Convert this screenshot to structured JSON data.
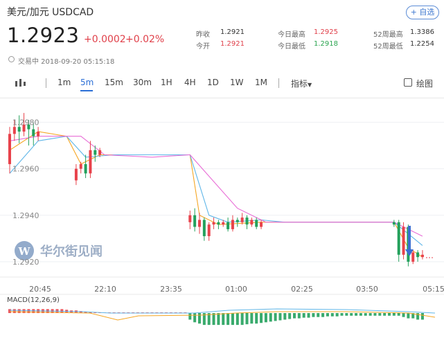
{
  "header": {
    "title": "美元/加元  USDCAD",
    "follow_label": "+ 自选"
  },
  "quote": {
    "price": "1.2923",
    "change": "+0.0002",
    "change_pct": "+0.02%",
    "fields": [
      {
        "label": "昨收",
        "value": "1.2921",
        "color": "normal"
      },
      {
        "label": "今日最高",
        "value": "1.2925",
        "color": "red"
      },
      {
        "label": "52周最高",
        "value": "1.3386",
        "color": "normal"
      },
      {
        "label": "今开",
        "value": "1.2921",
        "color": "red"
      },
      {
        "label": "今日最低",
        "value": "1.2918",
        "color": "green"
      },
      {
        "label": "52周最低",
        "value": "1.2254",
        "color": "normal"
      }
    ]
  },
  "status": {
    "text": "交易中 2018-09-20 05:15:18"
  },
  "toolbar": {
    "periods": [
      "1m",
      "5m",
      "15m",
      "30m",
      "1H",
      "4H",
      "1D",
      "1W",
      "1M"
    ],
    "active_period": "5m",
    "indicator_label": "指标",
    "draw_label": "绘图"
  },
  "watermark": {
    "text": "华尔街见闻"
  },
  "colors": {
    "up": "#e8424b",
    "down": "#23a15c",
    "ma_orange": "#f5a623",
    "ma_blue": "#5fb6e8",
    "ma_pink": "#e86bd6",
    "accent": "#2b6fd6"
  },
  "chart_data": {
    "type": "candlestick",
    "y_ticks": [
      "1.2980",
      "1.2960",
      "1.2940",
      "1.2920"
    ],
    "x_ticks": [
      "20:45",
      "22:10",
      "23:35",
      "01:00",
      "02:25",
      "03:50",
      "05:15"
    ],
    "ylim": [
      1.2914,
      1.299
    ],
    "candles": [
      {
        "i": 0,
        "o": 1.2962,
        "c": 1.2975,
        "h": 1.2978,
        "l": 1.2958
      },
      {
        "i": 1,
        "o": 1.2975,
        "c": 1.2978,
        "h": 1.2981,
        "l": 1.2972
      },
      {
        "i": 2,
        "o": 1.2978,
        "c": 1.2976,
        "h": 1.2983,
        "l": 1.2971
      },
      {
        "i": 3,
        "o": 1.2976,
        "c": 1.2979,
        "h": 1.2984,
        "l": 1.2974
      },
      {
        "i": 4,
        "o": 1.2979,
        "c": 1.2977,
        "h": 1.2981,
        "l": 1.297
      },
      {
        "i": 5,
        "o": 1.2977,
        "c": 1.2974,
        "h": 1.298,
        "l": 1.297
      },
      {
        "i": 6,
        "o": 1.2974,
        "c": 1.2976,
        "h": 1.2978,
        "l": 1.2972
      },
      {
        "i": 14,
        "o": 1.2955,
        "c": 1.296,
        "h": 1.2962,
        "l": 1.2953
      },
      {
        "i": 15,
        "o": 1.296,
        "c": 1.2962,
        "h": 1.2963,
        "l": 1.2958
      },
      {
        "i": 16,
        "o": 1.2962,
        "c": 1.2958,
        "h": 1.2966,
        "l": 1.2956
      },
      {
        "i": 17,
        "o": 1.2958,
        "c": 1.2968,
        "h": 1.2972,
        "l": 1.2956
      },
      {
        "i": 18,
        "o": 1.2968,
        "c": 1.2966,
        "h": 1.297,
        "l": 1.2963
      },
      {
        "i": 19,
        "o": 1.2966,
        "c": 1.2968,
        "h": 1.2969,
        "l": 1.2965
      },
      {
        "i": 38,
        "o": 1.2937,
        "c": 1.294,
        "h": 1.2942,
        "l": 1.2934
      },
      {
        "i": 39,
        "o": 1.294,
        "c": 1.2935,
        "h": 1.2943,
        "l": 1.2933
      },
      {
        "i": 40,
        "o": 1.2935,
        "c": 1.2938,
        "h": 1.2941,
        "l": 1.2932
      },
      {
        "i": 41,
        "o": 1.2938,
        "c": 1.2931,
        "h": 1.2939,
        "l": 1.2929
      },
      {
        "i": 42,
        "o": 1.2931,
        "c": 1.2936,
        "h": 1.2937,
        "l": 1.2929
      },
      {
        "i": 43,
        "o": 1.2936,
        "c": 1.2937,
        "h": 1.2939,
        "l": 1.2934
      },
      {
        "i": 44,
        "o": 1.2937,
        "c": 1.2936,
        "h": 1.2938,
        "l": 1.2934
      },
      {
        "i": 45,
        "o": 1.2936,
        "c": 1.2937,
        "h": 1.2938,
        "l": 1.2935
      },
      {
        "i": 46,
        "o": 1.2937,
        "c": 1.2934,
        "h": 1.2939,
        "l": 1.2933
      },
      {
        "i": 47,
        "o": 1.2934,
        "c": 1.2938,
        "h": 1.294,
        "l": 1.2933
      },
      {
        "i": 48,
        "o": 1.2938,
        "c": 1.2937,
        "h": 1.2939,
        "l": 1.2935
      },
      {
        "i": 49,
        "o": 1.2937,
        "c": 1.2939,
        "h": 1.2941,
        "l": 1.2936
      },
      {
        "i": 50,
        "o": 1.2939,
        "c": 1.2936,
        "h": 1.294,
        "l": 1.2934
      },
      {
        "i": 51,
        "o": 1.2936,
        "c": 1.2938,
        "h": 1.2939,
        "l": 1.2935
      },
      {
        "i": 52,
        "o": 1.2938,
        "c": 1.2935,
        "h": 1.2939,
        "l": 1.2934
      },
      {
        "i": 53,
        "o": 1.2935,
        "c": 1.2937,
        "h": 1.2938,
        "l": 1.2934
      },
      {
        "i": 81,
        "o": 1.2937,
        "c": 1.2936,
        "h": 1.2938,
        "l": 1.2935
      },
      {
        "i": 82,
        "o": 1.2937,
        "c": 1.2923,
        "h": 1.2938,
        "l": 1.292
      },
      {
        "i": 83,
        "o": 1.2923,
        "c": 1.2935,
        "h": 1.2937,
        "l": 1.2921
      },
      {
        "i": 84,
        "o": 1.2935,
        "c": 1.292,
        "h": 1.2936,
        "l": 1.2918
      },
      {
        "i": 85,
        "o": 1.292,
        "c": 1.2924,
        "h": 1.2925,
        "l": 1.2919
      },
      {
        "i": 86,
        "o": 1.2924,
        "c": 1.2922,
        "h": 1.2925,
        "l": 1.292
      },
      {
        "i": 87,
        "o": 1.2922,
        "c": 1.2923,
        "h": 1.2925,
        "l": 1.2921
      }
    ],
    "ma_lines": [
      {
        "color": "orange",
        "points": [
          [
            0,
            1.2968
          ],
          [
            6,
            1.2976
          ],
          [
            12,
            1.2974
          ],
          [
            15,
            1.2962
          ],
          [
            19,
            1.2966
          ],
          [
            25,
            1.2966
          ],
          [
            38,
            1.2966
          ],
          [
            40,
            1.294
          ],
          [
            44,
            1.2936
          ],
          [
            53,
            1.2937
          ],
          [
            58,
            1.2937
          ],
          [
            81,
            1.2937
          ],
          [
            84,
            1.2926
          ],
          [
            87,
            1.2922
          ]
        ]
      },
      {
        "color": "blue",
        "points": [
          [
            0,
            1.2958
          ],
          [
            6,
            1.2972
          ],
          [
            12,
            1.2974
          ],
          [
            16,
            1.2965
          ],
          [
            22,
            1.2966
          ],
          [
            38,
            1.2966
          ],
          [
            42,
            1.294
          ],
          [
            46,
            1.2937
          ],
          [
            53,
            1.2938
          ],
          [
            58,
            1.2937
          ],
          [
            81,
            1.2937
          ],
          [
            84,
            1.2932
          ],
          [
            87,
            1.2927
          ]
        ]
      },
      {
        "color": "pink",
        "points": [
          [
            0,
            1.2972
          ],
          [
            6,
            1.2974
          ],
          [
            15,
            1.2974
          ],
          [
            20,
            1.2966
          ],
          [
            30,
            1.2965
          ],
          [
            38,
            1.2966
          ],
          [
            48,
            1.2943
          ],
          [
            54,
            1.2937
          ],
          [
            81,
            1.2937
          ],
          [
            87,
            1.2931
          ]
        ]
      }
    ],
    "macd_label": "MACD(12,26,9)",
    "macd_histogram": [
      3,
      3,
      3,
      3,
      3,
      3,
      3,
      3,
      3,
      3,
      3,
      3,
      2.5,
      2,
      2,
      1.5,
      1,
      0.5,
      0.5,
      0.5,
      0.5,
      0.5,
      0.5,
      0.5,
      0.5,
      0.5,
      0.5,
      0.5,
      0.5,
      0.5,
      0.5,
      0.5,
      0.5,
      0.5,
      0.5,
      0.5,
      0.5,
      0.5,
      -5,
      -7,
      -8,
      -9,
      -9,
      -9,
      -9,
      -9,
      -9,
      -9,
      -9,
      -9,
      -8.5,
      -8,
      -8,
      -7.5,
      -7,
      -6.5,
      -6,
      -5.5,
      -5,
      -4.5,
      -4,
      -4,
      -3.5,
      -3.5,
      -3,
      -3,
      -3,
      -2.5,
      -2.5,
      -2.5,
      -2,
      -2,
      -2,
      -2,
      -2,
      -2,
      -2,
      -2,
      -2,
      -2,
      -2,
      -2,
      -2,
      -3,
      -4,
      -4,
      -5,
      -5
    ]
  }
}
